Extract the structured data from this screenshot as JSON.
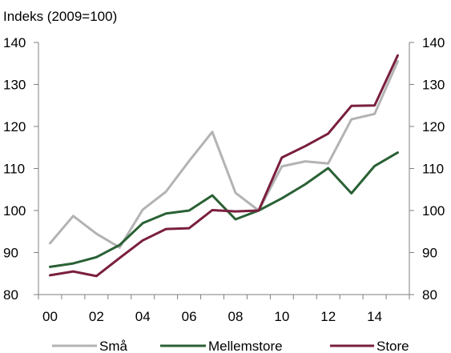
{
  "chart_data": {
    "type": "line",
    "unit_label": "Indeks (2009=100)",
    "x": [
      2000,
      2001,
      2002,
      2003,
      2004,
      2005,
      2006,
      2007,
      2008,
      2009,
      2010,
      2011,
      2012,
      2013,
      2014,
      2015
    ],
    "x_tick_labels": [
      "00",
      "02",
      "04",
      "06",
      "08",
      "10",
      "12",
      "14"
    ],
    "x_tick_years": [
      2000,
      2002,
      2004,
      2006,
      2008,
      2010,
      2012,
      2014
    ],
    "y_ticks": [
      80,
      90,
      100,
      110,
      120,
      130,
      140
    ],
    "ylim": [
      80,
      140
    ],
    "grid": false,
    "legend_position": "bottom",
    "series": [
      {
        "name": "Små",
        "color": "#b3b3b3",
        "values": [
          92.2,
          98.7,
          94.5,
          91.2,
          100.2,
          104.5,
          111.8,
          118.7,
          104.2,
          100.0,
          110.5,
          111.7,
          111.2,
          121.7,
          123.0,
          135.5
        ]
      },
      {
        "name": "Mellemstore",
        "color": "#2a6135",
        "values": [
          86.6,
          87.4,
          88.9,
          91.8,
          97.0,
          99.3,
          100.0,
          103.6,
          97.9,
          100.0,
          102.9,
          106.2,
          110.1,
          104.1,
          110.6,
          113.8
        ]
      },
      {
        "name": "Store",
        "color": "#7a1f3e",
        "values": [
          84.6,
          85.5,
          84.4,
          88.7,
          92.9,
          95.6,
          95.8,
          100.1,
          99.8,
          100.0,
          112.6,
          115.3,
          118.3,
          124.9,
          125.0,
          136.9
        ]
      }
    ]
  }
}
